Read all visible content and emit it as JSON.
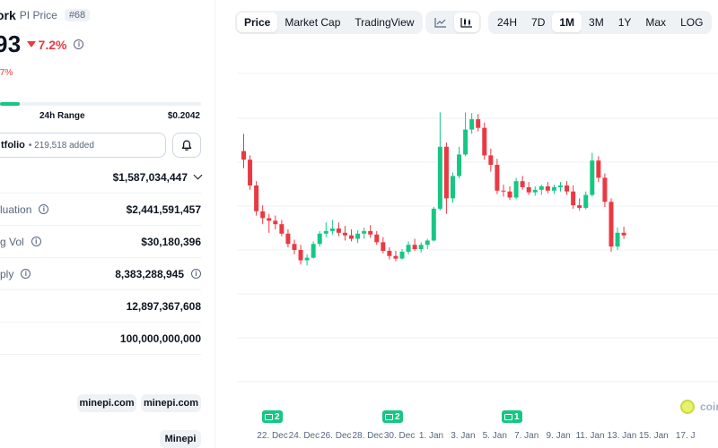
{
  "coin": {
    "name": "ork",
    "symbol": "PI Price",
    "rank": "#68"
  },
  "price": {
    "value": "93",
    "change": "7.2%",
    "sub_change": ".7%"
  },
  "range": {
    "label": "24h Range",
    "high": "$0.2042",
    "fill_fraction": 0.1
  },
  "portfolio": {
    "label": "tfolio",
    "count": "• 219,518 added"
  },
  "stats": [
    {
      "label": "",
      "value": "$1,587,034,447",
      "has_chevron": true,
      "label_info": false,
      "value_info": false
    },
    {
      "label": "luation",
      "value": "$2,441,591,457",
      "has_chevron": false,
      "label_info": true,
      "value_info": false
    },
    {
      "label": "g Vol",
      "value": "$30,180,396",
      "has_chevron": false,
      "label_info": true,
      "value_info": false
    },
    {
      "label": "ply",
      "value": "8,383,288,945",
      "has_chevron": false,
      "label_info": true,
      "value_info": true
    },
    {
      "label": "",
      "value": "12,897,367,608",
      "has_chevron": false,
      "label_info": false,
      "value_info": false
    },
    {
      "label": "",
      "value": "100,000,000,000",
      "has_chevron": false,
      "label_info": false,
      "value_info": false
    }
  ],
  "links": {
    "website_1": "minepi.com",
    "website_2": "minepi.com",
    "explorer": "Minepi"
  },
  "toolbar": {
    "price_tab": "Price",
    "market_cap_tab": "Market Cap",
    "trading_view_tab": "TradingView",
    "line_chart_icon": "line-chart-icon",
    "candle_chart_icon": "candlestick-icon",
    "ranges": [
      "24H",
      "7D",
      "1M",
      "3M",
      "1Y",
      "Max",
      "LOG"
    ],
    "active_range": "1M"
  },
  "watermark": "coin",
  "colors": {
    "up": "#16c784",
    "down": "#ea3943",
    "text": "#0d1421",
    "muted": "#58667e"
  },
  "news": [
    {
      "count": "2",
      "at": 12
    },
    {
      "count": "2",
      "at": 46
    },
    {
      "count": "1",
      "at": 82
    }
  ],
  "chart_data": {
    "type": "candlestick",
    "x_tick_labels": [
      "22. Dec",
      "24. Dec",
      "26. Dec",
      "28. Dec",
      "30. Dec",
      "1. Jan",
      "3. Jan",
      "5. Jan",
      "7. Jan",
      "9. Jan",
      "11. Jan",
      "13. Jan",
      "15. Jan",
      "17. J"
    ],
    "candles": [
      {
        "o": 53.5,
        "h": 55.5,
        "l": 51.5,
        "c": 52.5
      },
      {
        "o": 52.5,
        "h": 53.0,
        "l": 49.0,
        "c": 49.5
      },
      {
        "o": 49.5,
        "h": 50.0,
        "l": 46.0,
        "c": 46.5
      },
      {
        "o": 46.5,
        "h": 47.2,
        "l": 45.0,
        "c": 45.7
      },
      {
        "o": 45.7,
        "h": 46.2,
        "l": 44.0,
        "c": 45.4
      },
      {
        "o": 45.4,
        "h": 46.0,
        "l": 44.4,
        "c": 45.0
      },
      {
        "o": 45.0,
        "h": 45.5,
        "l": 43.6,
        "c": 43.9
      },
      {
        "o": 43.9,
        "h": 44.4,
        "l": 42.3,
        "c": 42.7
      },
      {
        "o": 42.7,
        "h": 43.2,
        "l": 41.5,
        "c": 42.0
      },
      {
        "o": 42.0,
        "h": 42.6,
        "l": 40.3,
        "c": 40.8
      },
      {
        "o": 40.8,
        "h": 41.5,
        "l": 40.2,
        "c": 41.1
      },
      {
        "o": 41.1,
        "h": 43.0,
        "l": 41.0,
        "c": 42.7
      },
      {
        "o": 42.7,
        "h": 44.2,
        "l": 42.4,
        "c": 43.9
      },
      {
        "o": 43.9,
        "h": 45.2,
        "l": 43.5,
        "c": 44.2
      },
      {
        "o": 44.2,
        "h": 45.5,
        "l": 43.8,
        "c": 44.5
      },
      {
        "o": 44.5,
        "h": 45.2,
        "l": 43.6,
        "c": 44.0
      },
      {
        "o": 44.0,
        "h": 44.8,
        "l": 43.1,
        "c": 43.7
      },
      {
        "o": 43.7,
        "h": 44.4,
        "l": 43.0,
        "c": 43.3
      },
      {
        "o": 43.3,
        "h": 44.3,
        "l": 42.8,
        "c": 43.9
      },
      {
        "o": 43.9,
        "h": 44.6,
        "l": 43.3,
        "c": 44.2
      },
      {
        "o": 44.2,
        "h": 44.9,
        "l": 43.4,
        "c": 43.8
      },
      {
        "o": 43.8,
        "h": 44.2,
        "l": 42.6,
        "c": 42.9
      },
      {
        "o": 42.9,
        "h": 43.5,
        "l": 41.6,
        "c": 41.9
      },
      {
        "o": 41.9,
        "h": 42.3,
        "l": 40.9,
        "c": 41.3
      },
      {
        "o": 41.3,
        "h": 41.9,
        "l": 40.7,
        "c": 41.0
      },
      {
        "o": 41.0,
        "h": 42.1,
        "l": 40.9,
        "c": 41.8
      },
      {
        "o": 41.8,
        "h": 43.0,
        "l": 41.5,
        "c": 42.6
      },
      {
        "o": 42.6,
        "h": 43.3,
        "l": 41.9,
        "c": 42.1
      },
      {
        "o": 42.1,
        "h": 42.9,
        "l": 41.7,
        "c": 42.6
      },
      {
        "o": 42.6,
        "h": 43.3,
        "l": 42.1,
        "c": 43.1
      },
      {
        "o": 43.1,
        "h": 47.0,
        "l": 43.0,
        "c": 46.8
      },
      {
        "o": 46.8,
        "h": 58.0,
        "l": 46.6,
        "c": 54.0
      },
      {
        "o": 54.0,
        "h": 54.5,
        "l": 46.2,
        "c": 48.0
      },
      {
        "o": 48.0,
        "h": 51.0,
        "l": 47.5,
        "c": 50.6
      },
      {
        "o": 50.6,
        "h": 54.0,
        "l": 50.3,
        "c": 53.1
      },
      {
        "o": 53.1,
        "h": 58.0,
        "l": 52.9,
        "c": 56.0
      },
      {
        "o": 56.0,
        "h": 57.9,
        "l": 55.5,
        "c": 57.2
      },
      {
        "o": 57.2,
        "h": 57.8,
        "l": 55.8,
        "c": 56.2
      },
      {
        "o": 56.2,
        "h": 56.8,
        "l": 52.5,
        "c": 53.0
      },
      {
        "o": 53.0,
        "h": 53.8,
        "l": 51.1,
        "c": 51.9
      },
      {
        "o": 51.9,
        "h": 52.6,
        "l": 48.5,
        "c": 48.9
      },
      {
        "o": 48.9,
        "h": 49.6,
        "l": 48.2,
        "c": 48.8
      },
      {
        "o": 48.8,
        "h": 49.4,
        "l": 47.8,
        "c": 48.1
      },
      {
        "o": 48.1,
        "h": 50.4,
        "l": 47.9,
        "c": 50.0
      },
      {
        "o": 50.0,
        "h": 50.6,
        "l": 49.0,
        "c": 49.3
      },
      {
        "o": 49.3,
        "h": 49.9,
        "l": 48.4,
        "c": 48.7
      },
      {
        "o": 48.7,
        "h": 49.4,
        "l": 48.3,
        "c": 49.0
      },
      {
        "o": 49.0,
        "h": 49.6,
        "l": 48.4,
        "c": 49.4
      },
      {
        "o": 49.4,
        "h": 49.9,
        "l": 48.6,
        "c": 48.9
      },
      {
        "o": 48.9,
        "h": 49.6,
        "l": 48.5,
        "c": 49.3
      },
      {
        "o": 49.3,
        "h": 49.9,
        "l": 48.8,
        "c": 49.5
      },
      {
        "o": 49.5,
        "h": 50.0,
        "l": 48.4,
        "c": 48.8
      },
      {
        "o": 48.8,
        "h": 49.5,
        "l": 46.8,
        "c": 47.2
      },
      {
        "o": 47.2,
        "h": 48.0,
        "l": 46.6,
        "c": 46.9
      },
      {
        "o": 46.9,
        "h": 48.8,
        "l": 46.7,
        "c": 48.4
      },
      {
        "o": 48.4,
        "h": 53.3,
        "l": 48.2,
        "c": 52.4
      },
      {
        "o": 52.4,
        "h": 52.9,
        "l": 49.9,
        "c": 50.4
      },
      {
        "o": 50.4,
        "h": 50.9,
        "l": 47.0,
        "c": 47.6
      },
      {
        "o": 47.6,
        "h": 48.0,
        "l": 41.8,
        "c": 42.4
      },
      {
        "o": 42.4,
        "h": 44.6,
        "l": 42.0,
        "c": 44.0
      },
      {
        "o": 44.0,
        "h": 44.7,
        "l": 43.3,
        "c": 43.7
      }
    ],
    "title": "",
    "xlabel": "",
    "ylabel": "",
    "ylim": [
      38,
      58
    ],
    "grid": true,
    "legend": "none"
  }
}
